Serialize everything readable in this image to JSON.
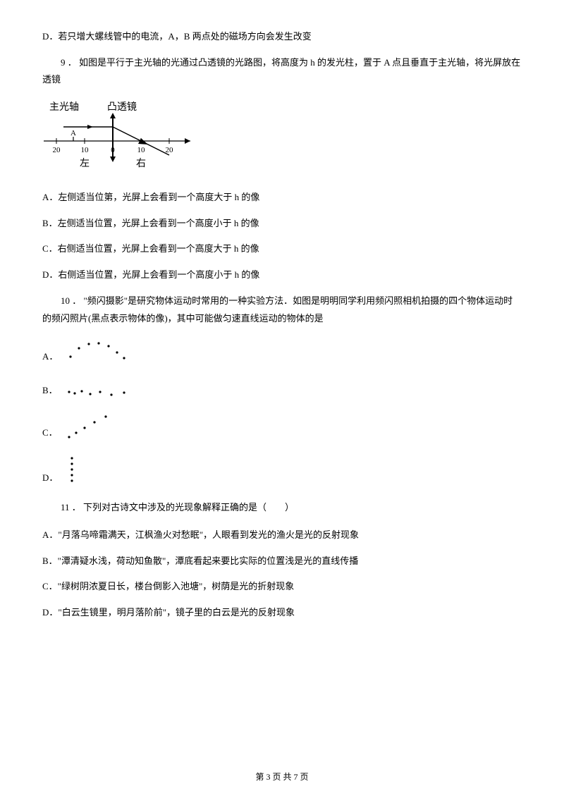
{
  "q8": {
    "optionD": "D．若只增大螺线管中的电流，A，B 两点处的磁场方向会发生改变"
  },
  "q9": {
    "stem": "9 ． 如图是平行于主光轴的光通过凸透镜的光路图，将高度为 h 的发光柱，置于 A 点且垂直于主光轴，将光屏放在透镜",
    "diagram": {
      "axis_label_left": "主光轴",
      "axis_label_top": "凸透镜",
      "ticks": [
        "20",
        "10",
        "0",
        "10",
        "20"
      ],
      "point_label": "A",
      "left_label": "左",
      "right_label": "右",
      "line_color": "#000000",
      "bg": "#ffffff"
    },
    "options": {
      "A": "A．左侧适当位第，光屏上会看到一个高度大于 h 的像",
      "B": "B．左侧适当位置，光屏上会看到一个高度小于 h 的像",
      "C": "C．右侧适当位置，光屏上会看到一个高度大于 h 的像",
      "D": "D．右侧适当位置，光屏上会看到一个高度小于 h 的像"
    }
  },
  "q10": {
    "stem": "10 ． \"频闪摄影\"是研究物体运动时常用的一种实验方法．如图是明明同学利用频闪照相机拍摄的四个物体运动时的频闪照片(黑点表示物体的像)，其中可能做匀速直线运动的物体的是",
    "labels": {
      "A": "A．",
      "B": "B．",
      "C": "C．",
      "D": "D．"
    },
    "dots": {
      "A": [
        [
          10,
          28
        ],
        [
          22,
          16
        ],
        [
          36,
          10
        ],
        [
          50,
          9
        ],
        [
          64,
          13
        ],
        [
          76,
          22
        ],
        [
          86,
          30
        ]
      ],
      "B": [
        [
          8,
          20
        ],
        [
          16,
          22
        ],
        [
          26,
          19
        ],
        [
          38,
          23
        ],
        [
          52,
          20
        ],
        [
          68,
          24
        ],
        [
          86,
          21
        ]
      ],
      "C": [
        [
          8,
          36
        ],
        [
          18,
          30
        ],
        [
          30,
          23
        ],
        [
          44,
          15
        ],
        [
          60,
          7
        ]
      ],
      "D": [
        [
          12,
          6
        ],
        [
          12,
          14
        ],
        [
          12,
          22
        ],
        [
          12,
          30
        ],
        [
          12,
          38
        ]
      ]
    },
    "dot_color": "#000000",
    "dot_radius": 1.6
  },
  "q11": {
    "stem": "11 ． 下列对古诗文中涉及的光现象解释正确的是（　　）",
    "options": {
      "A": "A．\"月落乌啼霜满天，江枫渔火对愁眠\"，人眼看到发光的渔火是光的反射现象",
      "B": "B．\"潭清疑水浅，荷动知鱼散\"，潭底看起来要比实际的位置浅是光的直线传播",
      "C": "C．\"绿树阴浓夏日长，楼台倒影入池塘\"，树荫是光的折射现象",
      "D": "D．\"白云生镜里，明月落阶前\"，镜子里的白云是光的反射现象"
    }
  },
  "footer": "第 3 页 共 7 页"
}
